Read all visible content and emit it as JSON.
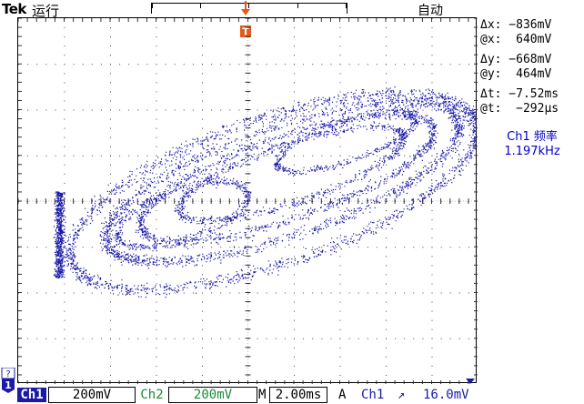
{
  "topbar": {
    "brand": "Tek",
    "status": "运行",
    "trigger_status": "自动"
  },
  "readouts": {
    "dx": "Δx: −836mV",
    "at_x": "@x:  640mV",
    "dy": "Δy: −668mV",
    "at_y": "@y:  464mV",
    "dt": "Δt: −7.52ms",
    "at_t": "@t:  −292μs"
  },
  "measurement": {
    "label": "Ch1 频率",
    "value": "1.197kHz"
  },
  "markers": {
    "trigger": "T",
    "channel": "1",
    "channel_top": "?"
  },
  "bottombar": {
    "ch1": "Ch1",
    "ch1_scale": "200mV",
    "ch2": "Ch2",
    "ch2_scale": "200mV",
    "time_tag": "M",
    "time_scale": "2.00ms",
    "trigger_mode": "A",
    "trigger_source": "Ch1",
    "trigger_slope": "↗",
    "trigger_level": "16.0mV"
  },
  "colors": {
    "trace": "#1a1aa6",
    "trigger_marker": "#e35a1a",
    "ch2": "#1a8a3a"
  }
}
